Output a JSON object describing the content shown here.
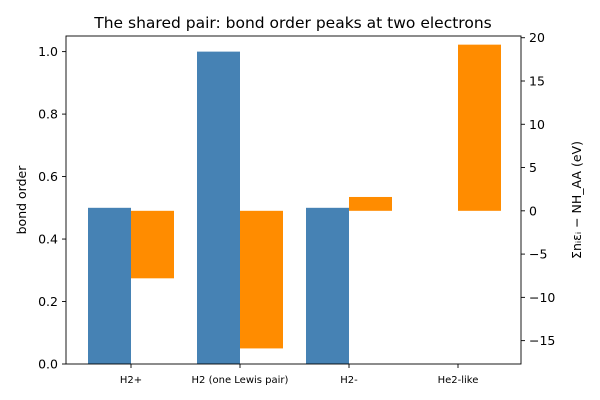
{
  "chart_data": {
    "type": "bar",
    "title": "The shared pair: bond order peaks at two electrons",
    "categories": [
      "H2+",
      "H2 (one Lewis pair)",
      "H2-",
      "He2-like"
    ],
    "series": [
      {
        "axis": "left",
        "color": "#4682b4",
        "values": [
          0.5,
          1.0,
          0.5,
          0.0
        ]
      },
      {
        "axis": "right",
        "color": "#ff8c00",
        "values": [
          -7.8,
          -15.9,
          1.6,
          19.2
        ]
      }
    ],
    "ylabel_left": "bond order",
    "ylabel_right": "Σnᵢεᵢ − NH_AA (eV)",
    "ylim_left": [
      0,
      1.05
    ],
    "ylim_right": [
      -17.7,
      20.2
    ],
    "yticks_left": [
      "0.0",
      "0.2",
      "0.4",
      "0.6",
      "0.8",
      "1.0"
    ],
    "yticks_right": [
      "−15",
      "−10",
      "−5",
      "0",
      "5",
      "10",
      "15",
      "20"
    ],
    "grid": false,
    "legend": "none"
  }
}
